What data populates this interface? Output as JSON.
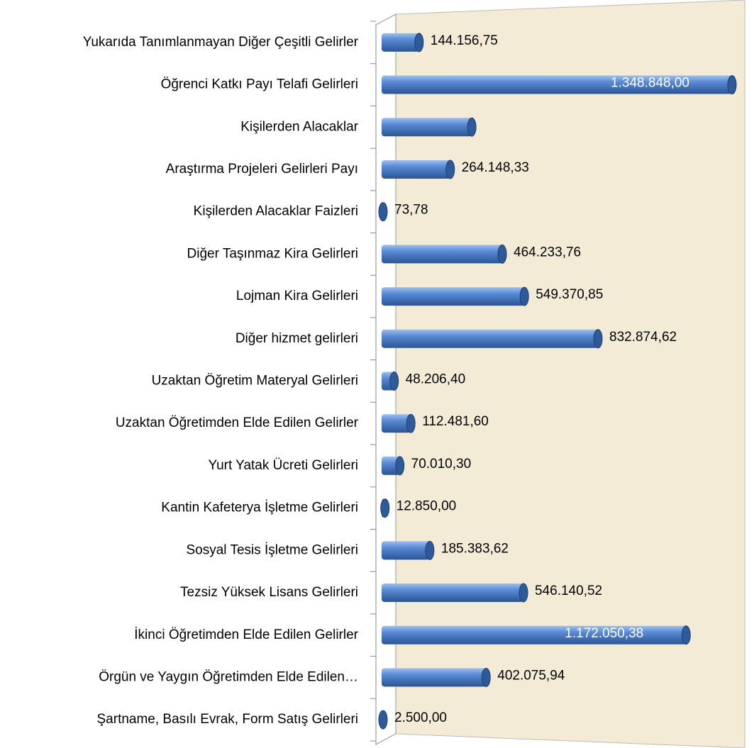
{
  "chart_data": {
    "type": "bar",
    "orientation": "horizontal",
    "color": "#4a7cc4",
    "categories": [
      "Yukarıda Tanımlanmayan Diğer Çeşitli Gelirler",
      "Öğrenci Katkı Payı Telafi Gelirleri",
      "Kişilerden Alacaklar",
      "Araştırma Projeleri Gelirleri Payı",
      "Kişilerden Alacaklar Faizleri",
      "Diğer Taşınmaz Kira Gelirleri",
      "Lojman Kira Gelirleri",
      "Diğer hizmet gelirleri",
      "Uzaktan Öğretim Materyal Gelirleri",
      "Uzaktan Öğretimden Elde Edilen Gelirler",
      "Yurt Yatak Ücreti Gelirleri",
      "Kantin Kafeterya İşletme Gelirleri",
      "Sosyal Tesis İşletme Gelirleri",
      "Tezsiz Yüksek Lisans Gelirleri",
      "İkinci Öğretimden Elde Edilen Gelirler",
      "Örgün ve Yaygın Öğretimden Elde Edilen…",
      "Şartname, Basılı Evrak, Form Satış Gelirleri"
    ],
    "values": [
      144156.75,
      1348848.0,
      347000,
      264148.33,
      73.78,
      464233.76,
      549370.85,
      832874.62,
      48206.4,
      112481.6,
      70010.3,
      12850.0,
      185383.62,
      546140.52,
      1172050.38,
      402075.94,
      2500.0
    ],
    "value_labels": [
      "144.156,75",
      "1.348.848,00",
      null,
      "264.148,33",
      "73,78",
      "464.233,76",
      "549.370,85",
      "832.874,62",
      "48.206,40",
      "112.481,60",
      "70.010,30",
      "12.850,00",
      "185.383,62",
      "546.140,52",
      "1.172.050,38",
      "402.075,94",
      "2.500,00"
    ]
  }
}
